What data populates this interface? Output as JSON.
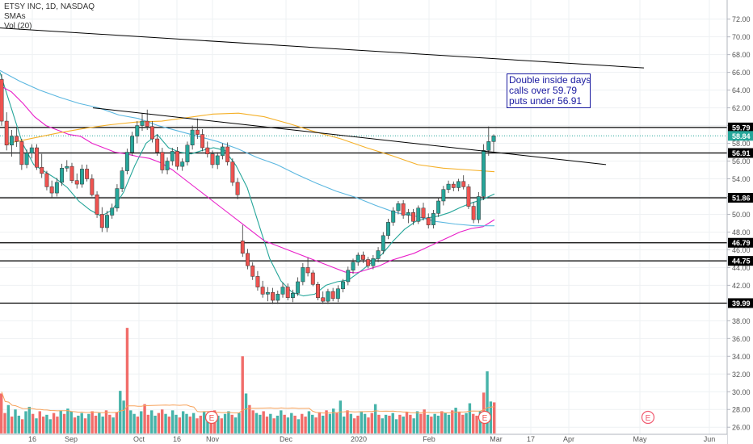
{
  "chart_data": {
    "type": "candlestick",
    "symbol": "ETSY INC, 1D, NASDAQ",
    "indicators": [
      "SMAs",
      "Vol (20)"
    ],
    "price_axis": {
      "ticks": [
        26,
        28,
        30,
        32,
        34,
        36,
        38,
        40,
        42,
        44,
        46,
        48,
        50,
        52,
        54,
        56,
        58,
        60,
        62,
        64,
        66,
        68,
        70,
        72
      ],
      "tick_labels": [
        "26.00",
        "28.00",
        "30.00",
        "32.00",
        "34.00",
        "36.00",
        "38.00",
        "40.00",
        "42.00",
        "44.00",
        "46.00",
        "48.00",
        "50.00",
        "52.00",
        "54.00",
        "56.00",
        "58.00",
        "60.00",
        "62.00",
        "64.00",
        "66.00",
        "68.00",
        "70.00",
        "72.00"
      ],
      "ylim": [
        25.2,
        73.2
      ]
    },
    "time_axis": {
      "labels": [
        "16",
        "Sep",
        "Oct",
        "16",
        "Nov",
        "Dec",
        "2020",
        "Feb",
        "Mar",
        "17",
        "Apr",
        "May",
        "Jun"
      ]
    },
    "horizontal_levels": [
      {
        "price": 59.79,
        "label": "59.79"
      },
      {
        "price": 56.91,
        "label": "56.91"
      },
      {
        "price": 51.86,
        "label": "51.86"
      },
      {
        "price": 46.79,
        "label": "46.79"
      },
      {
        "price": 44.75,
        "label": "44.75"
      },
      {
        "price": 39.99,
        "label": "39.99"
      }
    ],
    "last_price": {
      "price": 58.84,
      "label": "58.84",
      "color": "#26a69a"
    },
    "trendlines": [
      {
        "from": {
          "date": "Aug 2019",
          "price": 71.0
        },
        "to": {
          "date": "Apr 2020",
          "price": 66.5
        }
      },
      {
        "from": {
          "date": "Sep 2019",
          "price": 62.0
        },
        "to": {
          "date": "Mar 2020",
          "price": 55.6
        }
      }
    ],
    "annotation": {
      "lines": [
        "Double inside days",
        "calls over 59.79",
        "puts under 56.91"
      ]
    },
    "earnings_markers": [
      {
        "date": "Nov 2019",
        "label": "E"
      },
      {
        "date": "Feb 2020",
        "label": "E"
      },
      {
        "date": "May 2020",
        "label": "E"
      }
    ],
    "candles": [
      [
        65.2,
        65.8,
        60.0,
        60.5
      ],
      [
        60.5,
        61.5,
        57.2,
        57.8
      ],
      [
        57.8,
        59.5,
        56.5,
        58.8
      ],
      [
        58.8,
        59.8,
        57.6,
        58.2
      ],
      [
        58.2,
        58.5,
        55.0,
        55.6
      ],
      [
        55.6,
        57.3,
        55.2,
        56.9
      ],
      [
        56.9,
        57.9,
        56.3,
        57.5
      ],
      [
        57.5,
        57.9,
        55.0,
        55.3
      ],
      [
        55.3,
        56.8,
        54.1,
        54.6
      ],
      [
        54.6,
        54.9,
        52.7,
        53.1
      ],
      [
        53.1,
        53.8,
        51.8,
        52.4
      ],
      [
        52.4,
        54.1,
        52.0,
        53.6
      ],
      [
        53.6,
        55.7,
        53.2,
        55.2
      ],
      [
        55.2,
        56.1,
        54.8,
        55.4
      ],
      [
        55.4,
        55.8,
        53.5,
        53.8
      ],
      [
        53.8,
        54.6,
        52.9,
        53.4
      ],
      [
        53.4,
        55.6,
        53.0,
        55.1
      ],
      [
        55.1,
        55.6,
        53.7,
        54.0
      ],
      [
        54.0,
        54.5,
        52.0,
        52.2
      ],
      [
        52.2,
        52.6,
        49.6,
        50.0
      ],
      [
        50.0,
        50.8,
        48.0,
        48.5
      ],
      [
        48.5,
        50.4,
        48.0,
        49.9
      ],
      [
        49.9,
        51.2,
        49.5,
        50.7
      ],
      [
        50.7,
        53.4,
        50.3,
        52.9
      ],
      [
        52.9,
        55.3,
        52.5,
        54.9
      ],
      [
        54.9,
        57.4,
        54.5,
        57.0
      ],
      [
        57.0,
        59.3,
        56.6,
        58.8
      ],
      [
        58.8,
        60.5,
        58.0,
        60.0
      ],
      [
        60.0,
        61.4,
        59.4,
        60.5
      ],
      [
        60.5,
        61.8,
        59.5,
        59.9
      ],
      [
        59.9,
        60.5,
        58.1,
        58.5
      ],
      [
        58.5,
        59.0,
        56.6,
        57.0
      ],
      [
        57.0,
        57.5,
        54.6,
        55.0
      ],
      [
        55.0,
        56.4,
        54.5,
        56.0
      ],
      [
        56.0,
        57.5,
        55.5,
        57.1
      ],
      [
        57.1,
        57.6,
        55.0,
        55.4
      ],
      [
        55.4,
        56.3,
        54.9,
        55.9
      ],
      [
        55.9,
        58.2,
        55.5,
        57.8
      ],
      [
        57.8,
        60.0,
        57.3,
        59.5
      ],
      [
        59.5,
        60.8,
        58.5,
        59.0
      ],
      [
        59.0,
        59.6,
        57.1,
        57.5
      ],
      [
        57.5,
        58.2,
        56.4,
        56.8
      ],
      [
        56.8,
        57.2,
        55.2,
        55.6
      ],
      [
        55.6,
        57.0,
        55.1,
        56.6
      ],
      [
        56.6,
        58.0,
        56.2,
        57.6
      ],
      [
        57.6,
        58.1,
        55.5,
        55.9
      ],
      [
        55.9,
        56.3,
        53.2,
        53.6
      ],
      [
        53.6,
        54.1,
        51.7,
        52.2
      ],
      [
        47.0,
        48.8,
        45.2,
        45.6
      ],
      [
        45.6,
        46.1,
        43.8,
        44.2
      ],
      [
        44.2,
        44.6,
        42.6,
        43.0
      ],
      [
        43.0,
        43.6,
        41.4,
        41.8
      ],
      [
        41.8,
        42.5,
        40.6,
        41.0
      ],
      [
        41.0,
        41.8,
        40.2,
        41.2
      ],
      [
        41.2,
        41.7,
        39.9,
        40.3
      ],
      [
        40.3,
        41.4,
        39.9,
        41.0
      ],
      [
        41.0,
        42.3,
        40.6,
        41.8
      ],
      [
        41.8,
        42.2,
        40.3,
        40.6
      ],
      [
        40.6,
        41.5,
        40.1,
        41.1
      ],
      [
        41.1,
        42.9,
        40.8,
        42.4
      ],
      [
        42.4,
        44.5,
        42.0,
        44.0
      ],
      [
        44.0,
        45.1,
        43.0,
        43.4
      ],
      [
        43.4,
        43.7,
        41.9,
        42.1
      ],
      [
        42.1,
        42.4,
        40.3,
        40.6
      ],
      [
        40.6,
        41.3,
        39.9,
        40.2
      ],
      [
        40.2,
        41.6,
        39.9,
        41.3
      ],
      [
        41.3,
        41.7,
        40.2,
        40.5
      ],
      [
        40.5,
        42.0,
        40.1,
        41.6
      ],
      [
        41.6,
        42.7,
        41.2,
        42.4
      ],
      [
        42.4,
        44.1,
        42.0,
        43.7
      ],
      [
        43.7,
        45.0,
        43.3,
        44.6
      ],
      [
        44.6,
        45.7,
        44.2,
        45.4
      ],
      [
        45.4,
        45.8,
        44.5,
        44.9
      ],
      [
        44.9,
        45.2,
        43.9,
        44.2
      ],
      [
        44.2,
        45.4,
        43.8,
        45.0
      ],
      [
        45.0,
        46.3,
        44.6,
        45.9
      ],
      [
        45.9,
        48.0,
        45.5,
        47.6
      ],
      [
        47.6,
        49.5,
        47.2,
        49.1
      ],
      [
        49.1,
        50.8,
        48.7,
        50.4
      ],
      [
        50.4,
        51.5,
        50.0,
        51.2
      ],
      [
        51.2,
        51.6,
        49.5,
        49.9
      ],
      [
        49.9,
        50.6,
        49.0,
        50.2
      ],
      [
        50.2,
        50.6,
        48.8,
        49.2
      ],
      [
        49.2,
        51.0,
        48.9,
        50.7
      ],
      [
        50.7,
        51.3,
        49.3,
        49.6
      ],
      [
        49.6,
        50.1,
        48.4,
        48.8
      ],
      [
        48.8,
        50.5,
        48.4,
        50.1
      ],
      [
        50.1,
        51.9,
        49.7,
        51.5
      ],
      [
        51.5,
        53.2,
        51.0,
        52.8
      ],
      [
        52.8,
        53.8,
        52.4,
        53.4
      ],
      [
        53.4,
        53.7,
        52.6,
        53.0
      ],
      [
        53.0,
        54.0,
        52.6,
        53.7
      ],
      [
        53.7,
        54.4,
        52.8,
        53.1
      ],
      [
        53.1,
        53.4,
        50.6,
        50.9
      ],
      [
        50.9,
        51.4,
        49.0,
        49.4
      ],
      [
        49.4,
        52.5,
        49.0,
        52.0
      ],
      [
        52.0,
        57.9,
        51.6,
        57.2
      ],
      [
        57.2,
        59.9,
        56.6,
        58.2
      ],
      [
        58.2,
        59.0,
        57.0,
        58.84
      ]
    ],
    "sma_series": [
      {
        "color": "#26a69a",
        "values": [
          66.0,
          62.0,
          58.0,
          55.6,
          54.8,
          54.0,
          53.0,
          51.5,
          50.5,
          49.8,
          50.5,
          52.5,
          55.5,
          58.0,
          59.0,
          57.5,
          57.0,
          56.8,
          57.2,
          57.5,
          57.2,
          55.5,
          53.0,
          49.0,
          45.0,
          42.5,
          41.2,
          40.8,
          41.0,
          42.0,
          42.4,
          42.6,
          43.5,
          44.5,
          45.5,
          47.0,
          48.3,
          49.2,
          49.6,
          49.8,
          50.2,
          50.8,
          51.3,
          51.7,
          52.3
        ]
      },
      {
        "color": "#e91ec9",
        "values": [
          64.5,
          63.8,
          62.5,
          61.0,
          60.0,
          59.5,
          59.0,
          58.8,
          58.0,
          57.5,
          57.0,
          56.8,
          56.5,
          56.3,
          55.8,
          55.0,
          54.0,
          53.0,
          52.0,
          51.0,
          50.0,
          49.0,
          48.0,
          47.0,
          46.5,
          46.0,
          45.5,
          45.0,
          44.5,
          44.0,
          43.5,
          43.4,
          43.8,
          44.2,
          44.8,
          45.2,
          45.6,
          46.2,
          46.8,
          47.4,
          48.0,
          48.4,
          48.6,
          49.4
        ]
      },
      {
        "color": "#5bb7e0",
        "values": [
          66.2,
          65.0,
          64.0,
          63.2,
          62.5,
          62.0,
          61.2,
          60.8,
          60.0,
          59.4,
          58.8,
          58.2,
          57.4,
          56.4,
          55.6,
          54.5,
          53.5,
          52.6,
          51.9,
          51.0,
          50.2,
          49.8,
          49.2,
          48.9,
          48.7,
          48.7
        ]
      },
      {
        "color": "#f5b028",
        "values": [
          58.0,
          58.6,
          59.2,
          59.7,
          60.1,
          60.4,
          60.5,
          60.9,
          61.3,
          61.4,
          61.0,
          60.2,
          59.3,
          58.5,
          57.5,
          56.6,
          55.6,
          55.2,
          55.0,
          54.8
        ]
      }
    ],
    "volume": [
      29.8,
      27.6,
      28.5,
      27.2,
      28.0,
      27.3,
      26.9,
      27.8,
      28.3,
      27.5,
      27.0,
      27.8,
      27.2,
      27.4,
      26.9,
      27.6,
      27.2,
      27.9,
      27.5,
      28.1,
      27.8,
      27.1,
      27.3,
      27.6,
      27.0,
      27.5,
      27.8,
      27.3,
      27.6,
      27.2,
      27.9,
      27.4,
      27.1,
      27.7,
      30.1,
      29.0,
      37.2,
      27.9,
      27.5,
      27.2,
      27.8,
      28.6,
      27.4,
      27.9,
      27.3,
      27.6,
      28.0,
      27.5,
      27.2,
      27.9,
      27.4,
      27.1,
      27.8,
      27.5,
      27.2,
      27.6,
      27.0,
      27.3,
      27.8,
      27.4,
      27.1,
      27.9,
      27.3,
      27.0,
      27.5,
      27.8,
      27.4,
      27.1,
      27.6,
      34.0,
      29.8,
      28.5,
      27.9,
      27.6,
      27.4,
      27.8,
      27.2,
      27.5,
      27.0,
      27.3,
      27.9,
      27.4,
      27.1,
      27.6,
      27.3,
      26.9,
      27.5,
      27.2,
      27.8,
      27.4,
      27.1,
      27.7,
      27.3,
      27.9,
      27.5,
      28.1,
      27.6,
      29.0,
      27.2,
      27.9,
      27.5,
      27.0,
      27.3,
      27.8,
      27.5,
      27.1,
      27.6,
      28.6,
      27.4,
      27.0,
      27.4,
      27.3,
      27.6,
      26.9,
      27.4,
      27.2,
      27.7,
      27.4,
      27.0,
      27.8,
      27.5,
      28.0,
      27.4,
      27.2,
      27.5,
      27.3,
      27.8,
      27.6,
      27.4,
      27.9,
      28.2,
      27.7,
      27.4,
      27.6,
      28.7,
      27.5,
      27.3,
      27.8,
      29.9,
      32.3,
      28.9,
      28.8
    ],
    "volume_color_up": "#26a69a",
    "volume_color_down": "#ef5350",
    "volume_ma_color": "#f7a35c"
  }
}
